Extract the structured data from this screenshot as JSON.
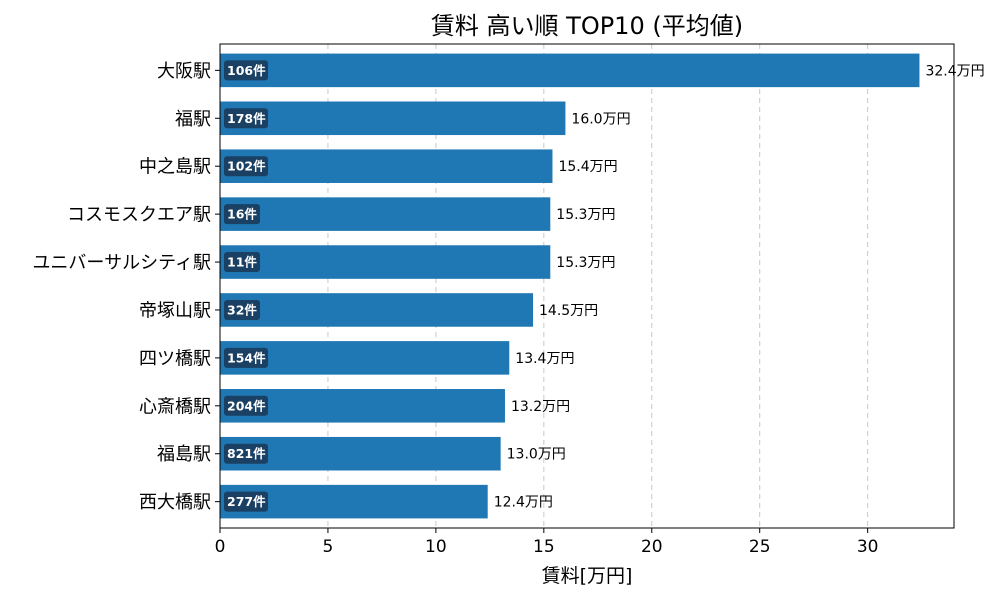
{
  "chart_data": {
    "type": "bar",
    "orientation": "horizontal",
    "title": "賃料 高い順 TOP10 (平均値)",
    "xlabel": "賃料[万円]",
    "ylabel": "",
    "xlim": [
      0,
      34
    ],
    "x_ticks": [
      0,
      5,
      10,
      15,
      20,
      25,
      30
    ],
    "grid": "x-dashed",
    "bar_color": "#1f77b4",
    "count_badge_color": "#1a3a5a",
    "categories": [
      "大阪駅",
      "福駅",
      "中之島駅",
      "コスモスクエア駅",
      "ユニバーサルシティ駅",
      "帝塚山駅",
      "四ツ橋駅",
      "心斎橋駅",
      "福島駅",
      "西大橋駅"
    ],
    "values": [
      32.4,
      16.0,
      15.4,
      15.3,
      15.3,
      14.5,
      13.4,
      13.2,
      13.0,
      12.4
    ],
    "value_labels": [
      "32.4万円",
      "16.0万円",
      "15.4万円",
      "15.3万円",
      "15.3万円",
      "14.5万円",
      "13.4万円",
      "13.2万円",
      "13.0万円",
      "12.4万円"
    ],
    "counts": [
      "106件",
      "178件",
      "102件",
      "16件",
      "11件",
      "32件",
      "154件",
      "204件",
      "821件",
      "277件"
    ]
  }
}
